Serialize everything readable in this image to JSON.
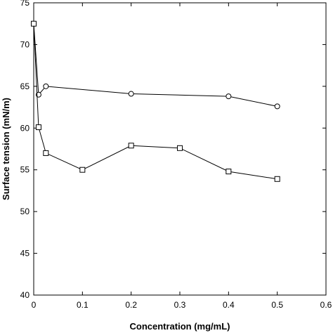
{
  "chart_data": {
    "type": "line",
    "title": "",
    "xlabel": "Concentration (mg/mL)",
    "ylabel": "Surface tension (mN/m)",
    "xlim": [
      0,
      0.6
    ],
    "ylim": [
      40,
      75
    ],
    "x_ticks": [
      "0",
      "0.1",
      "0.2",
      "0.3",
      "0.4",
      "0.5",
      "0.6"
    ],
    "y_ticks": [
      "40",
      "45",
      "50",
      "55",
      "60",
      "65",
      "70",
      "75"
    ],
    "grid": false,
    "legend": "none",
    "series": [
      {
        "marker": "circle",
        "x": [
          0,
          0.01,
          0.025,
          0.2,
          0.4,
          0.5
        ],
        "y": [
          72.5,
          64.0,
          65.0,
          64.1,
          63.8,
          62.6
        ]
      },
      {
        "marker": "square",
        "x": [
          0,
          0.01,
          0.025,
          0.1,
          0.2,
          0.3,
          0.4,
          0.5
        ],
        "y": [
          72.5,
          60.1,
          57.0,
          55.0,
          57.9,
          57.6,
          54.8,
          53.9
        ]
      }
    ],
    "colors": {
      "line": "#000000",
      "marker_fill": "#ffffff"
    }
  }
}
